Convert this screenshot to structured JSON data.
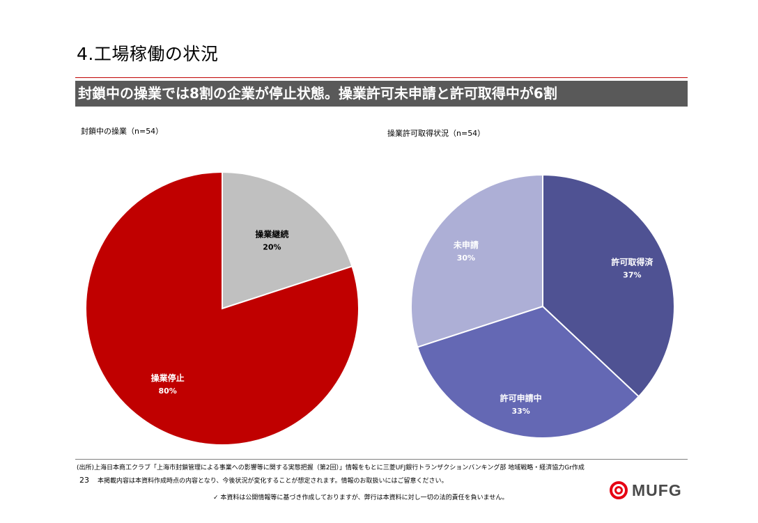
{
  "header": {
    "title": "4.工場稼働の状況",
    "banner": "封鎖中の操業では8割の企業が停止状態。操業許可未申請と許可取得中が6割"
  },
  "chart_data": [
    {
      "type": "pie",
      "title": "封鎖中の操業（n=54）",
      "slices": [
        {
          "label": "操業継続",
          "value": 20,
          "value_label": "20%",
          "color": "#c0c0c0",
          "label_color": "#000000"
        },
        {
          "label": "操業停止",
          "value": 80,
          "value_label": "80%",
          "color": "#c00000",
          "label_color": "#ffffff"
        }
      ]
    },
    {
      "type": "pie",
      "title": "操業許可取得状況（n=54）",
      "slices": [
        {
          "label": "許可取得済",
          "value": 37,
          "value_label": "37%",
          "color": "#4f5293",
          "label_color": "#ffffff"
        },
        {
          "label": "許可申請中",
          "value": 33,
          "value_label": "33%",
          "color": "#6468b4",
          "label_color": "#ffffff"
        },
        {
          "label": "未申請",
          "value": 30,
          "value_label": "30%",
          "color": "#adafd6",
          "label_color": "#ffffff"
        }
      ]
    }
  ],
  "footer": {
    "source": "(出所)上海日本商工クラブ「上海市封鎖管理による事業への影響等に関する実態把握（第2回）」情報をもとに三菱UFJ銀行トランザクションバンキング部 地域戦略・経済協力Gr作成",
    "page_number": "23",
    "notice": "本掲載内容は本資料作成時点の内容となり、今後状況が変化することが想定されます。情報のお取扱いにはご留意ください。",
    "disclaimer": "✓ 本資料は公開情報等に基づき作成しておりますが、弊行は本資料に対し一切の法的責任を負いません。",
    "logo_text": "MUFG"
  },
  "colors": {
    "accent": "#c00000",
    "banner": "#595959"
  }
}
